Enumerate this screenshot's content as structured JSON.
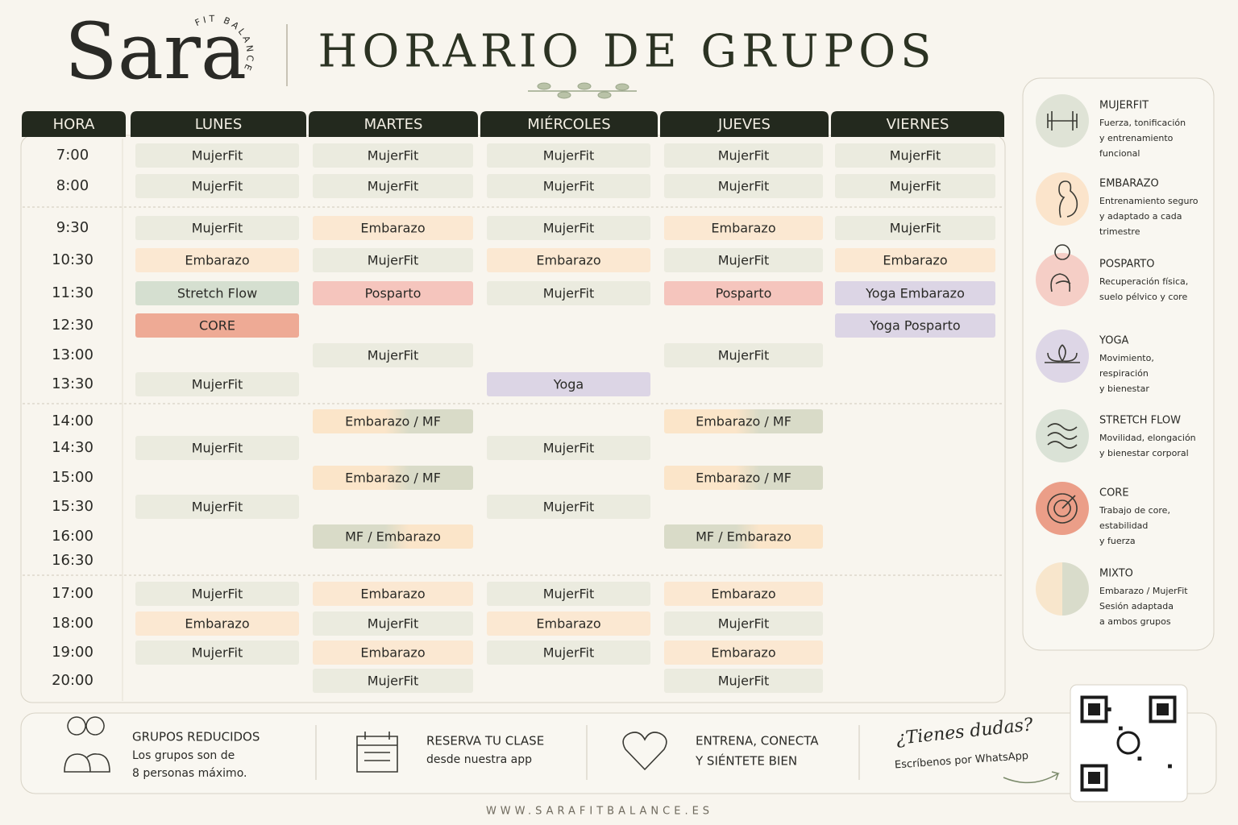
{
  "header": {
    "logo": "Sara",
    "logo_tagline": "FIT BALANCE",
    "title": "HORARIO DE GRUPOS"
  },
  "schedule": {
    "columns": [
      "HORA",
      "LUNES",
      "MARTES",
      "MIÉRCOLES",
      "JUEVES",
      "VIERNES"
    ],
    "rows": [
      {
        "time": "7:00",
        "classes": [
          {
            "text": "MujerFit",
            "color": "#ebebdf"
          },
          {
            "text": "MujerFit",
            "color": "#ebebdf"
          },
          {
            "text": "MujerFit",
            "color": "#ebebdf"
          },
          {
            "text": "MujerFit",
            "color": "#ebebdf"
          },
          {
            "text": "MujerFit",
            "color": "#ebebdf"
          }
        ]
      },
      {
        "time": "8:00",
        "classes": [
          {
            "text": "MujerFit",
            "color": "#ebebdf"
          },
          {
            "text": "MujerFit",
            "color": "#ebebdf"
          },
          {
            "text": "MujerFit",
            "color": "#ebebdf"
          },
          {
            "text": "MujerFit",
            "color": "#ebebdf"
          },
          {
            "text": "MujerFit",
            "color": "#ebebdf"
          }
        ]
      },
      {
        "time": "9:30",
        "classes": [
          {
            "text": "MujerFit",
            "color": "#ebebdf"
          },
          {
            "text": "Embarazo",
            "color": "#fbe8d2"
          },
          {
            "text": "MujerFit",
            "color": "#ebebdf"
          },
          {
            "text": "Embarazo",
            "color": "#fbe8d2"
          },
          {
            "text": "MujerFit",
            "color": "#ebebdf"
          }
        ]
      },
      {
        "time": "10:30",
        "classes": [
          {
            "text": "Embarazo",
            "color": "#fbe8d2"
          },
          {
            "text": "MujerFit",
            "color": "#ebebdf"
          },
          {
            "text": "Embarazo",
            "color": "#fbe8d2"
          },
          {
            "text": "MujerFit",
            "color": "#ebebdf"
          },
          {
            "text": "Embarazo",
            "color": "#fbe8d2"
          }
        ]
      },
      {
        "time": "11:30",
        "classes": [
          {
            "text": "Stretch Flow",
            "color": "#d5dfd0"
          },
          {
            "text": "Posparto",
            "color": "#f5c5bd"
          },
          {
            "text": "MujerFit",
            "color": "#ebebdf"
          },
          {
            "text": "Posparto",
            "color": "#f5c5bd"
          },
          {
            "text": "Yoga Embarazo",
            "color": "#dcd5e5"
          }
        ]
      },
      {
        "time": "12:30",
        "classes": [
          {
            "text": "CORE",
            "color": "#eeaa95"
          },
          null,
          null,
          null,
          {
            "text": "Yoga Posparto",
            "color": "#dcd5e5"
          }
        ]
      },
      {
        "time": "13:00",
        "classes": [
          null,
          {
            "text": "MujerFit",
            "color": "#ebebdf"
          },
          null,
          {
            "text": "MujerFit",
            "color": "#ebebdf"
          },
          null
        ]
      },
      {
        "time": "13:30",
        "classes": [
          {
            "text": "MujerFit",
            "color": "#ebebdf"
          },
          null,
          {
            "text": "Yoga",
            "color": "#dcd5e5"
          },
          null,
          null
        ]
      },
      {
        "time": "14:00",
        "classes": [
          null,
          {
            "text": "Embarazo / MF",
            "color": [
              "#fbe5c9",
              "#d9dbc8"
            ]
          },
          null,
          {
            "text": "Embarazo / MF",
            "color": [
              "#fbe5c9",
              "#d9dbc8"
            ]
          },
          null
        ]
      },
      {
        "time": "14:30",
        "classes": [
          {
            "text": "MujerFit",
            "color": "#ebebdf"
          },
          null,
          {
            "text": "MujerFit",
            "color": "#ebebdf"
          },
          null,
          null
        ]
      },
      {
        "time": "15:00",
        "classes": [
          null,
          {
            "text": "Embarazo / MF",
            "color": [
              "#fbe5c9",
              "#d9dbc8"
            ]
          },
          null,
          {
            "text": "Embarazo / MF",
            "color": [
              "#fbe5c9",
              "#d9dbc8"
            ]
          },
          null
        ]
      },
      {
        "time": "15:30",
        "classes": [
          {
            "text": "MujerFit",
            "color": "#ebebdf"
          },
          null,
          {
            "text": "MujerFit",
            "color": "#ebebdf"
          },
          null,
          null
        ]
      },
      {
        "time": "16:00",
        "classes": [
          null,
          {
            "text": "MF / Embarazo",
            "color": [
              "#d9dbc8",
              "#fbe5c9"
            ]
          },
          null,
          {
            "text": "MF / Embarazo",
            "color": [
              "#d9dbc8",
              "#fbe5c9"
            ]
          },
          null
        ]
      },
      {
        "time": "16:30",
        "classes": [
          null,
          null,
          null,
          null,
          null
        ]
      },
      {
        "time": "17:00",
        "classes": [
          {
            "text": "MujerFit",
            "color": "#ebebdf"
          },
          {
            "text": "Embarazo",
            "color": "#fbe8d2"
          },
          {
            "text": "MujerFit",
            "color": "#ebebdf"
          },
          {
            "text": "Embarazo",
            "color": "#fbe8d2"
          },
          null
        ]
      },
      {
        "time": "18:00",
        "classes": [
          {
            "text": "Embarazo",
            "color": "#fbe8d2"
          },
          {
            "text": "MujerFit",
            "color": "#ebebdf"
          },
          {
            "text": "Embarazo",
            "color": "#fbe8d2"
          },
          {
            "text": "MujerFit",
            "color": "#ebebdf"
          },
          null
        ]
      },
      {
        "time": "19:00",
        "classes": [
          {
            "text": "MujerFit",
            "color": "#ebebdf"
          },
          {
            "text": "Embarazo",
            "color": "#fbe8d2"
          },
          {
            "text": "MujerFit",
            "color": "#ebebdf"
          },
          {
            "text": "Embarazo",
            "color": "#fbe8d2"
          },
          null
        ]
      },
      {
        "time": "20:00",
        "classes": [
          null,
          {
            "text": "MujerFit",
            "color": "#ebebdf"
          },
          null,
          {
            "text": "MujerFit",
            "color": "#ebebdf"
          },
          null
        ]
      }
    ]
  },
  "legend": [
    {
      "title": "MUJERFIT",
      "description": [
        "Fuerza, tonificación",
        "y entrenamiento",
        "funcional"
      ],
      "color": "#dfe3d6"
    },
    {
      "title": "EMBARAZO",
      "description": [
        "Entrenamiento seguro",
        "y adaptado a cada",
        "trimestre"
      ],
      "color": "#fbe4cb"
    },
    {
      "title": "POSPARTO",
      "description": [
        "Recuperación física,",
        "suelo pélvico y core"
      ],
      "color": "#f5cec6"
    },
    {
      "title": "YOGA",
      "description": [
        "Movimiento,",
        "respiración",
        "y bienestar"
      ],
      "color": "#ddd6e6"
    },
    {
      "title": "STRETCH FLOW",
      "description": [
        "Movilidad, elongación",
        "y bienestar corporal"
      ],
      "color": "#dae2d6"
    },
    {
      "title": "CORE",
      "description": [
        "Trabajo de core,",
        "estabilidad",
        "y fuerza"
      ],
      "color": "#eb9e88"
    },
    {
      "title": "MIXTO",
      "description": [
        "Embarazo / MujerFit",
        "Sesión adaptada",
        "a ambos grupos"
      ],
      "color": [
        "#f8e6cc",
        "#d9dccb"
      ]
    }
  ],
  "footer": {
    "items": [
      {
        "title": [
          "GRUPOS REDUCIDOS"
        ],
        "text": [
          "Los grupos son de",
          "8 personas máximo."
        ]
      },
      {
        "title": [
          "RESERVA TU CLASE"
        ],
        "text": [
          "desde nuestra app"
        ]
      },
      {
        "title": [
          "ENTRENA, CONECTA",
          "Y SIÉNTETE BIEN"
        ],
        "text": []
      }
    ],
    "contact": {
      "title": "¿Tienes dudas?",
      "text": "Escríbenos por WhatsApp"
    }
  },
  "website": "WWW.SARAFITBALANCE.ES"
}
